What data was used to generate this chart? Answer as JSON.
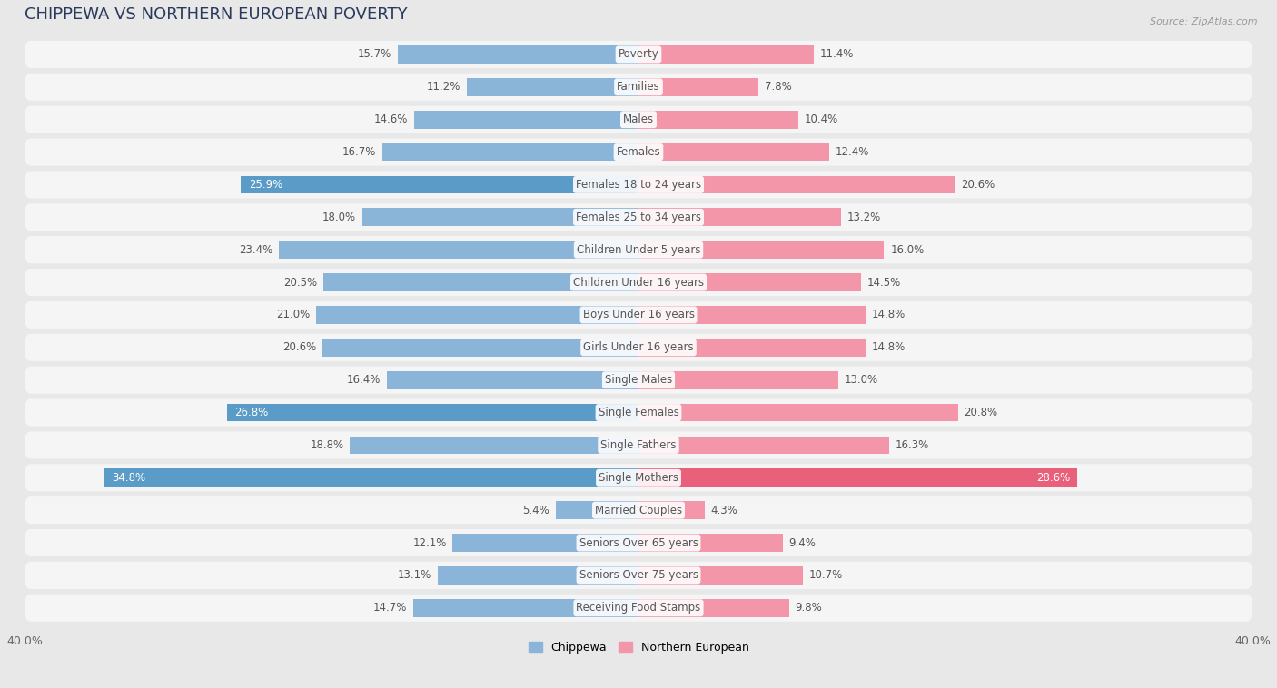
{
  "title": "CHIPPEWA VS NORTHERN EUROPEAN POVERTY",
  "source": "Source: ZipAtlas.com",
  "categories": [
    "Poverty",
    "Families",
    "Males",
    "Females",
    "Females 18 to 24 years",
    "Females 25 to 34 years",
    "Children Under 5 years",
    "Children Under 16 years",
    "Boys Under 16 years",
    "Girls Under 16 years",
    "Single Males",
    "Single Females",
    "Single Fathers",
    "Single Mothers",
    "Married Couples",
    "Seniors Over 65 years",
    "Seniors Over 75 years",
    "Receiving Food Stamps"
  ],
  "chippewa": [
    15.7,
    11.2,
    14.6,
    16.7,
    25.9,
    18.0,
    23.4,
    20.5,
    21.0,
    20.6,
    16.4,
    26.8,
    18.8,
    34.8,
    5.4,
    12.1,
    13.1,
    14.7
  ],
  "northern_european": [
    11.4,
    7.8,
    10.4,
    12.4,
    20.6,
    13.2,
    16.0,
    14.5,
    14.8,
    14.8,
    13.0,
    20.8,
    16.3,
    28.6,
    4.3,
    9.4,
    10.7,
    9.8
  ],
  "chippewa_color": "#8ab4d8",
  "northern_european_color": "#f496aa",
  "highlight_chippewa": [
    4,
    11,
    13
  ],
  "highlight_northern_european": [
    13
  ],
  "highlight_chippewa_color": "#5a9bc7",
  "highlight_northern_european_color": "#e8607a",
  "background_color": "#e8e8e8",
  "row_bg_color": "#f5f5f5",
  "axis_max": 40.0,
  "bar_height": 0.55,
  "title_fontsize": 13,
  "label_fontsize": 8.5,
  "tick_fontsize": 9,
  "legend_labels": [
    "Chippewa",
    "Northern European"
  ],
  "title_color": "#2a3a5c",
  "label_color": "#555555",
  "source_color": "#999999"
}
